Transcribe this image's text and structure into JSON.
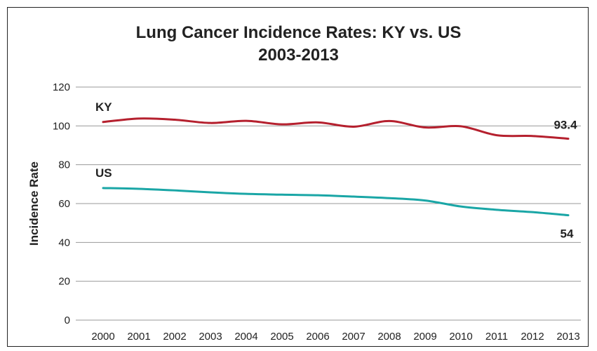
{
  "chart_data": {
    "type": "line",
    "title": "Lung Cancer Incidence Rates: KY vs. US",
    "subtitle": "2003-2013",
    "ylabel": "Incidence Rate",
    "xlabel": "",
    "ylim": [
      0,
      120
    ],
    "yticks": [
      0,
      20,
      40,
      60,
      80,
      100,
      120
    ],
    "x": [
      2000,
      2001,
      2002,
      2003,
      2004,
      2005,
      2006,
      2007,
      2008,
      2009,
      2010,
      2011,
      2012,
      2013
    ],
    "x_tick_labels": [
      "2000",
      "2001",
      "2002",
      "2003",
      "2004",
      "2005",
      "2006",
      "2007",
      "2008",
      "2009",
      "2010",
      "2011",
      "2012",
      "2013"
    ],
    "grid": "horizontal",
    "series": [
      {
        "name": "KY",
        "color": "#b5202e",
        "values": [
          102,
          103.8,
          103.2,
          101.5,
          102.6,
          100.8,
          101.8,
          99.6,
          102.5,
          99.2,
          99.8,
          95.2,
          94.8,
          93.4
        ],
        "end_label": "93.4"
      },
      {
        "name": "US",
        "color": "#1aa6a6",
        "values": [
          68,
          67.6,
          66.8,
          65.8,
          65,
          64.6,
          64.3,
          63.6,
          62.8,
          61.6,
          58.5,
          56.8,
          55.6,
          54
        ],
        "end_label": "54"
      }
    ]
  }
}
